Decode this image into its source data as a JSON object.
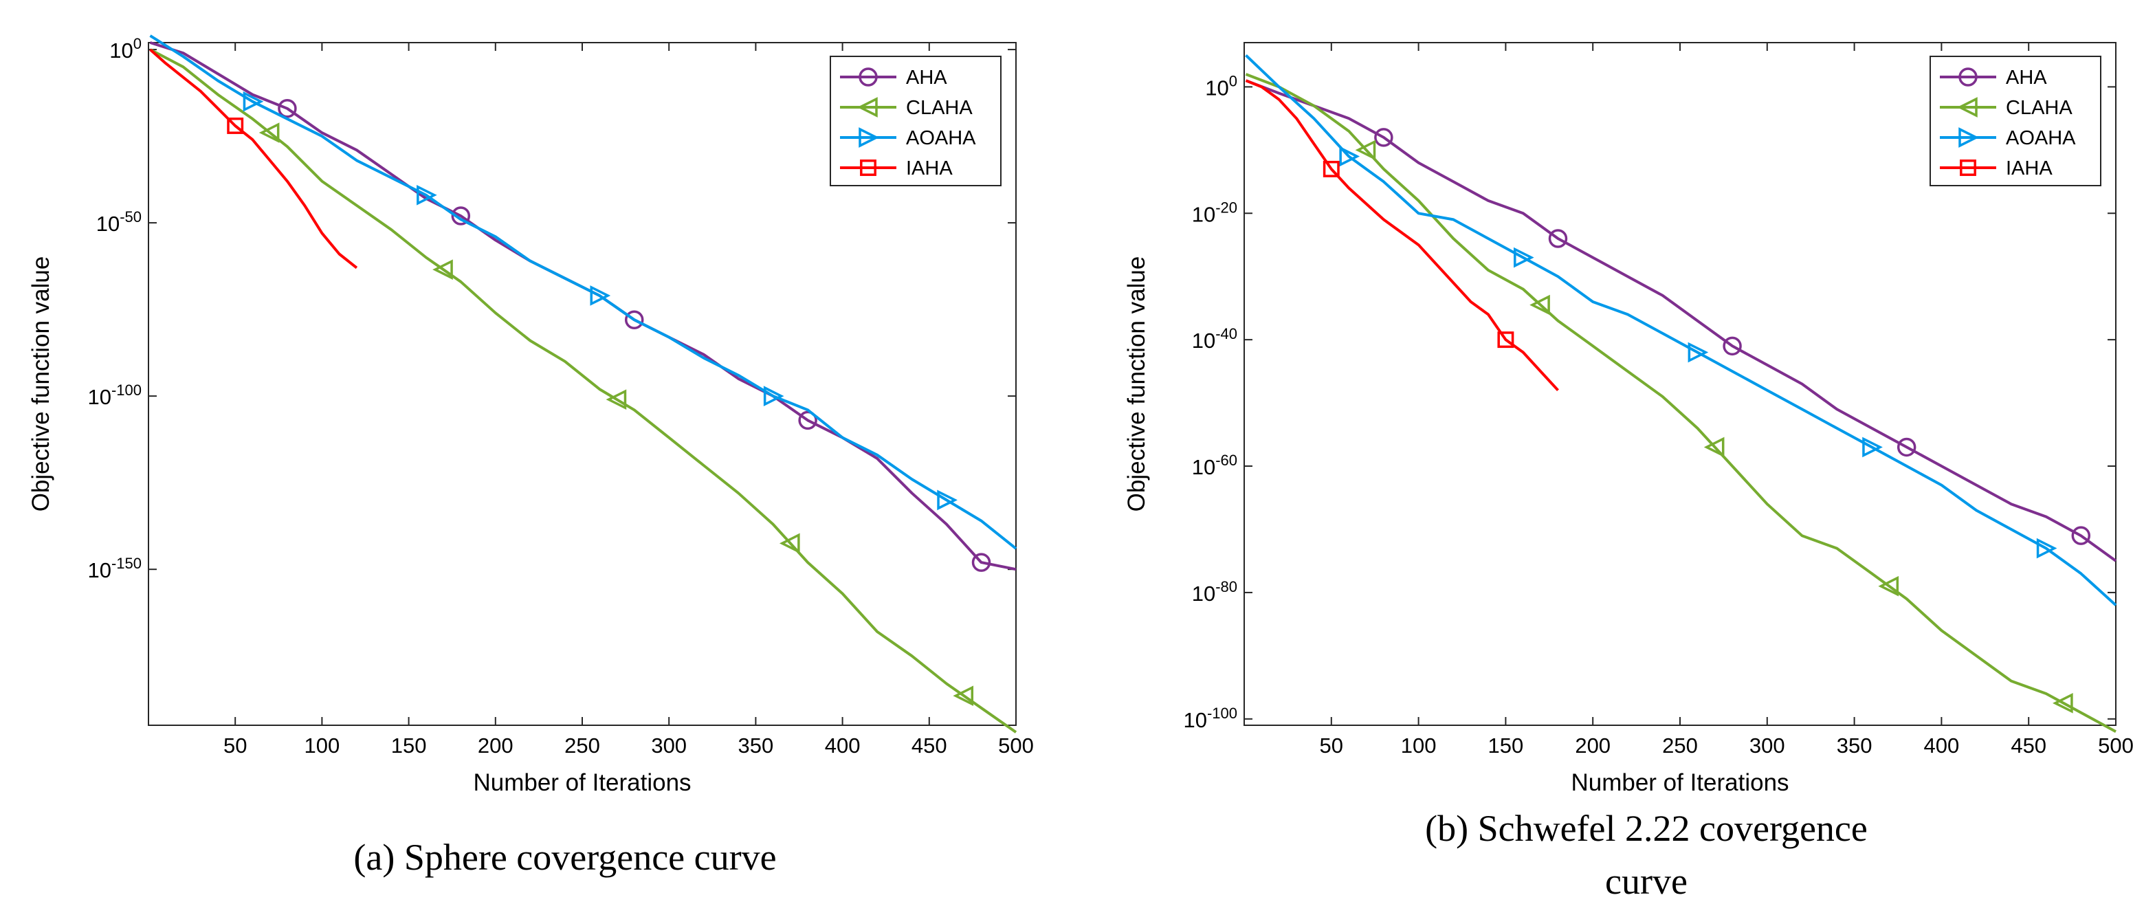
{
  "charts": [
    {
      "caption_lines": [
        "(a) Sphere covergence curve"
      ],
      "chart_data": {
        "type": "line",
        "y_scale": "log10",
        "xlabel": "Number of Iterations",
        "ylabel": "Objective function value",
        "xlim": [
          0,
          500
        ],
        "ylim_exponent": [
          -195,
          2
        ],
        "x_ticks": [
          50,
          100,
          150,
          200,
          250,
          300,
          350,
          400,
          450,
          500
        ],
        "y_ticks": [
          {
            "exp": 0,
            "base": "10",
            "sup": "0"
          },
          {
            "exp": -50,
            "base": "10",
            "sup": "-50"
          },
          {
            "exp": -100,
            "base": "10",
            "sup": "-100"
          },
          {
            "exp": -150,
            "base": "10",
            "sup": "-150"
          }
        ],
        "legend_position": "top-right",
        "series": [
          {
            "name": "AHA",
            "color": "#7e2f8e",
            "marker": "circle",
            "x": [
              1,
              20,
              40,
              60,
              80,
              100,
              120,
              140,
              160,
              180,
              200,
              220,
              240,
              260,
              280,
              300,
              320,
              340,
              360,
              380,
              400,
              420,
              440,
              460,
              480,
              500
            ],
            "y_exp": [
              2,
              -1,
              -7,
              -13,
              -17,
              -24,
              -29,
              -36,
              -43,
              -48,
              -55,
              -61,
              -66,
              -71,
              -78,
              -83,
              -88,
              -95,
              -100,
              -107,
              -112,
              -118,
              -128,
              -137,
              -148,
              -150
            ],
            "marker_x": [
              80,
              180,
              280,
              380,
              480
            ]
          },
          {
            "name": "CLAHA",
            "color": "#77ac30",
            "marker": "triangle-left",
            "x": [
              1,
              20,
              40,
              60,
              80,
              100,
              120,
              140,
              160,
              180,
              200,
              220,
              240,
              260,
              280,
              300,
              320,
              340,
              360,
              380,
              400,
              420,
              440,
              460,
              480,
              500
            ],
            "y_exp": [
              0,
              -5,
              -13,
              -20,
              -28,
              -38,
              -45,
              -52,
              -60,
              -67,
              -76,
              -84,
              -90,
              -98,
              -104,
              -112,
              -120,
              -128,
              -137,
              -148,
              -157,
              -168,
              -175,
              -183,
              -190,
              -197
            ],
            "marker_x": [
              70,
              170,
              270,
              370,
              470
            ]
          },
          {
            "name": "AOAHA",
            "color": "#0099ea",
            "marker": "triangle-right",
            "x": [
              1,
              20,
              40,
              60,
              80,
              100,
              120,
              140,
              160,
              180,
              200,
              220,
              240,
              260,
              280,
              300,
              320,
              340,
              360,
              380,
              400,
              420,
              440,
              460,
              480,
              500
            ],
            "y_exp": [
              4,
              -2,
              -9,
              -15,
              -20,
              -25,
              -32,
              -37,
              -42,
              -49,
              -54,
              -61,
              -66,
              -71,
              -78,
              -83,
              -89,
              -94,
              -100,
              -104,
              -112,
              -117,
              -124,
              -130,
              -136,
              -144
            ],
            "marker_x": [
              60,
              160,
              260,
              360,
              460
            ]
          },
          {
            "name": "IAHA",
            "color": "#ff0000",
            "marker": "square",
            "x": [
              1,
              10,
              20,
              30,
              40,
              50,
              60,
              70,
              80,
              90,
              100,
              110,
              120
            ],
            "y_exp": [
              0,
              -4,
              -8,
              -12,
              -17,
              -22,
              -26,
              -32,
              -38,
              -45,
              -53,
              -59,
              -63
            ],
            "marker_x": [
              50
            ]
          }
        ]
      }
    },
    {
      "caption_lines": [
        "(b) Schwefel 2.22 covergence",
        "curve"
      ],
      "chart_data": {
        "type": "line",
        "y_scale": "log10",
        "xlabel": "Number of Iterations",
        "ylabel": "Objective function value",
        "xlim": [
          0,
          500
        ],
        "ylim_exponent": [
          -101,
          7
        ],
        "x_ticks": [
          50,
          100,
          150,
          200,
          250,
          300,
          350,
          400,
          450,
          500
        ],
        "y_ticks": [
          {
            "exp": 0,
            "base": "10",
            "sup": "0"
          },
          {
            "exp": -20,
            "base": "10",
            "sup": "-20"
          },
          {
            "exp": -40,
            "base": "10",
            "sup": "-40"
          },
          {
            "exp": -60,
            "base": "10",
            "sup": "-60"
          },
          {
            "exp": -80,
            "base": "10",
            "sup": "-80"
          },
          {
            "exp": -100,
            "base": "10",
            "sup": "-100"
          }
        ],
        "legend_position": "top-right",
        "series": [
          {
            "name": "AHA",
            "color": "#7e2f8e",
            "marker": "circle",
            "x": [
              1,
              20,
              40,
              60,
              80,
              100,
              120,
              140,
              160,
              180,
              200,
              220,
              240,
              260,
              280,
              300,
              320,
              340,
              360,
              380,
              400,
              420,
              440,
              460,
              480,
              500
            ],
            "y_exp": [
              1,
              -1,
              -3,
              -5,
              -8,
              -12,
              -15,
              -18,
              -20,
              -24,
              -27,
              -30,
              -33,
              -37,
              -41,
              -44,
              -47,
              -51,
              -54,
              -57,
              -60,
              -63,
              -66,
              -68,
              -71,
              -75
            ],
            "marker_x": [
              80,
              180,
              280,
              380,
              480
            ]
          },
          {
            "name": "CLAHA",
            "color": "#77ac30",
            "marker": "triangle-left",
            "x": [
              1,
              20,
              40,
              60,
              80,
              100,
              120,
              140,
              160,
              180,
              200,
              220,
              240,
              260,
              280,
              300,
              320,
              340,
              360,
              380,
              400,
              420,
              440,
              460,
              480,
              500
            ],
            "y_exp": [
              2,
              0,
              -3,
              -7,
              -13,
              -18,
              -24,
              -29,
              -32,
              -37,
              -41,
              -45,
              -49,
              -54,
              -60,
              -66,
              -71,
              -73,
              -77,
              -81,
              -86,
              -90,
              -94,
              -96,
              -99,
              -102
            ],
            "marker_x": [
              70,
              170,
              270,
              370,
              470
            ]
          },
          {
            "name": "AOAHA",
            "color": "#0099ea",
            "marker": "triangle-right",
            "x": [
              1,
              20,
              40,
              60,
              80,
              100,
              120,
              140,
              160,
              180,
              200,
              220,
              240,
              260,
              280,
              300,
              320,
              340,
              360,
              380,
              400,
              420,
              440,
              460,
              480,
              500
            ],
            "y_exp": [
              5,
              0,
              -5,
              -11,
              -15,
              -20,
              -21,
              -24,
              -27,
              -30,
              -34,
              -36,
              -39,
              -42,
              -45,
              -48,
              -51,
              -54,
              -57,
              -60,
              -63,
              -67,
              -70,
              -73,
              -77,
              -82
            ],
            "marker_x": [
              60,
              160,
              260,
              360,
              460
            ]
          },
          {
            "name": "IAHA",
            "color": "#ff0000",
            "marker": "square",
            "x": [
              1,
              10,
              20,
              30,
              40,
              50,
              60,
              80,
              100,
              120,
              130,
              140,
              150,
              160,
              170,
              180
            ],
            "y_exp": [
              1,
              0,
              -2,
              -5,
              -9,
              -13,
              -16,
              -21,
              -25,
              -31,
              -34,
              -36,
              -40,
              -42,
              -45,
              -48
            ],
            "marker_x": [
              50,
              150
            ]
          }
        ]
      }
    }
  ]
}
